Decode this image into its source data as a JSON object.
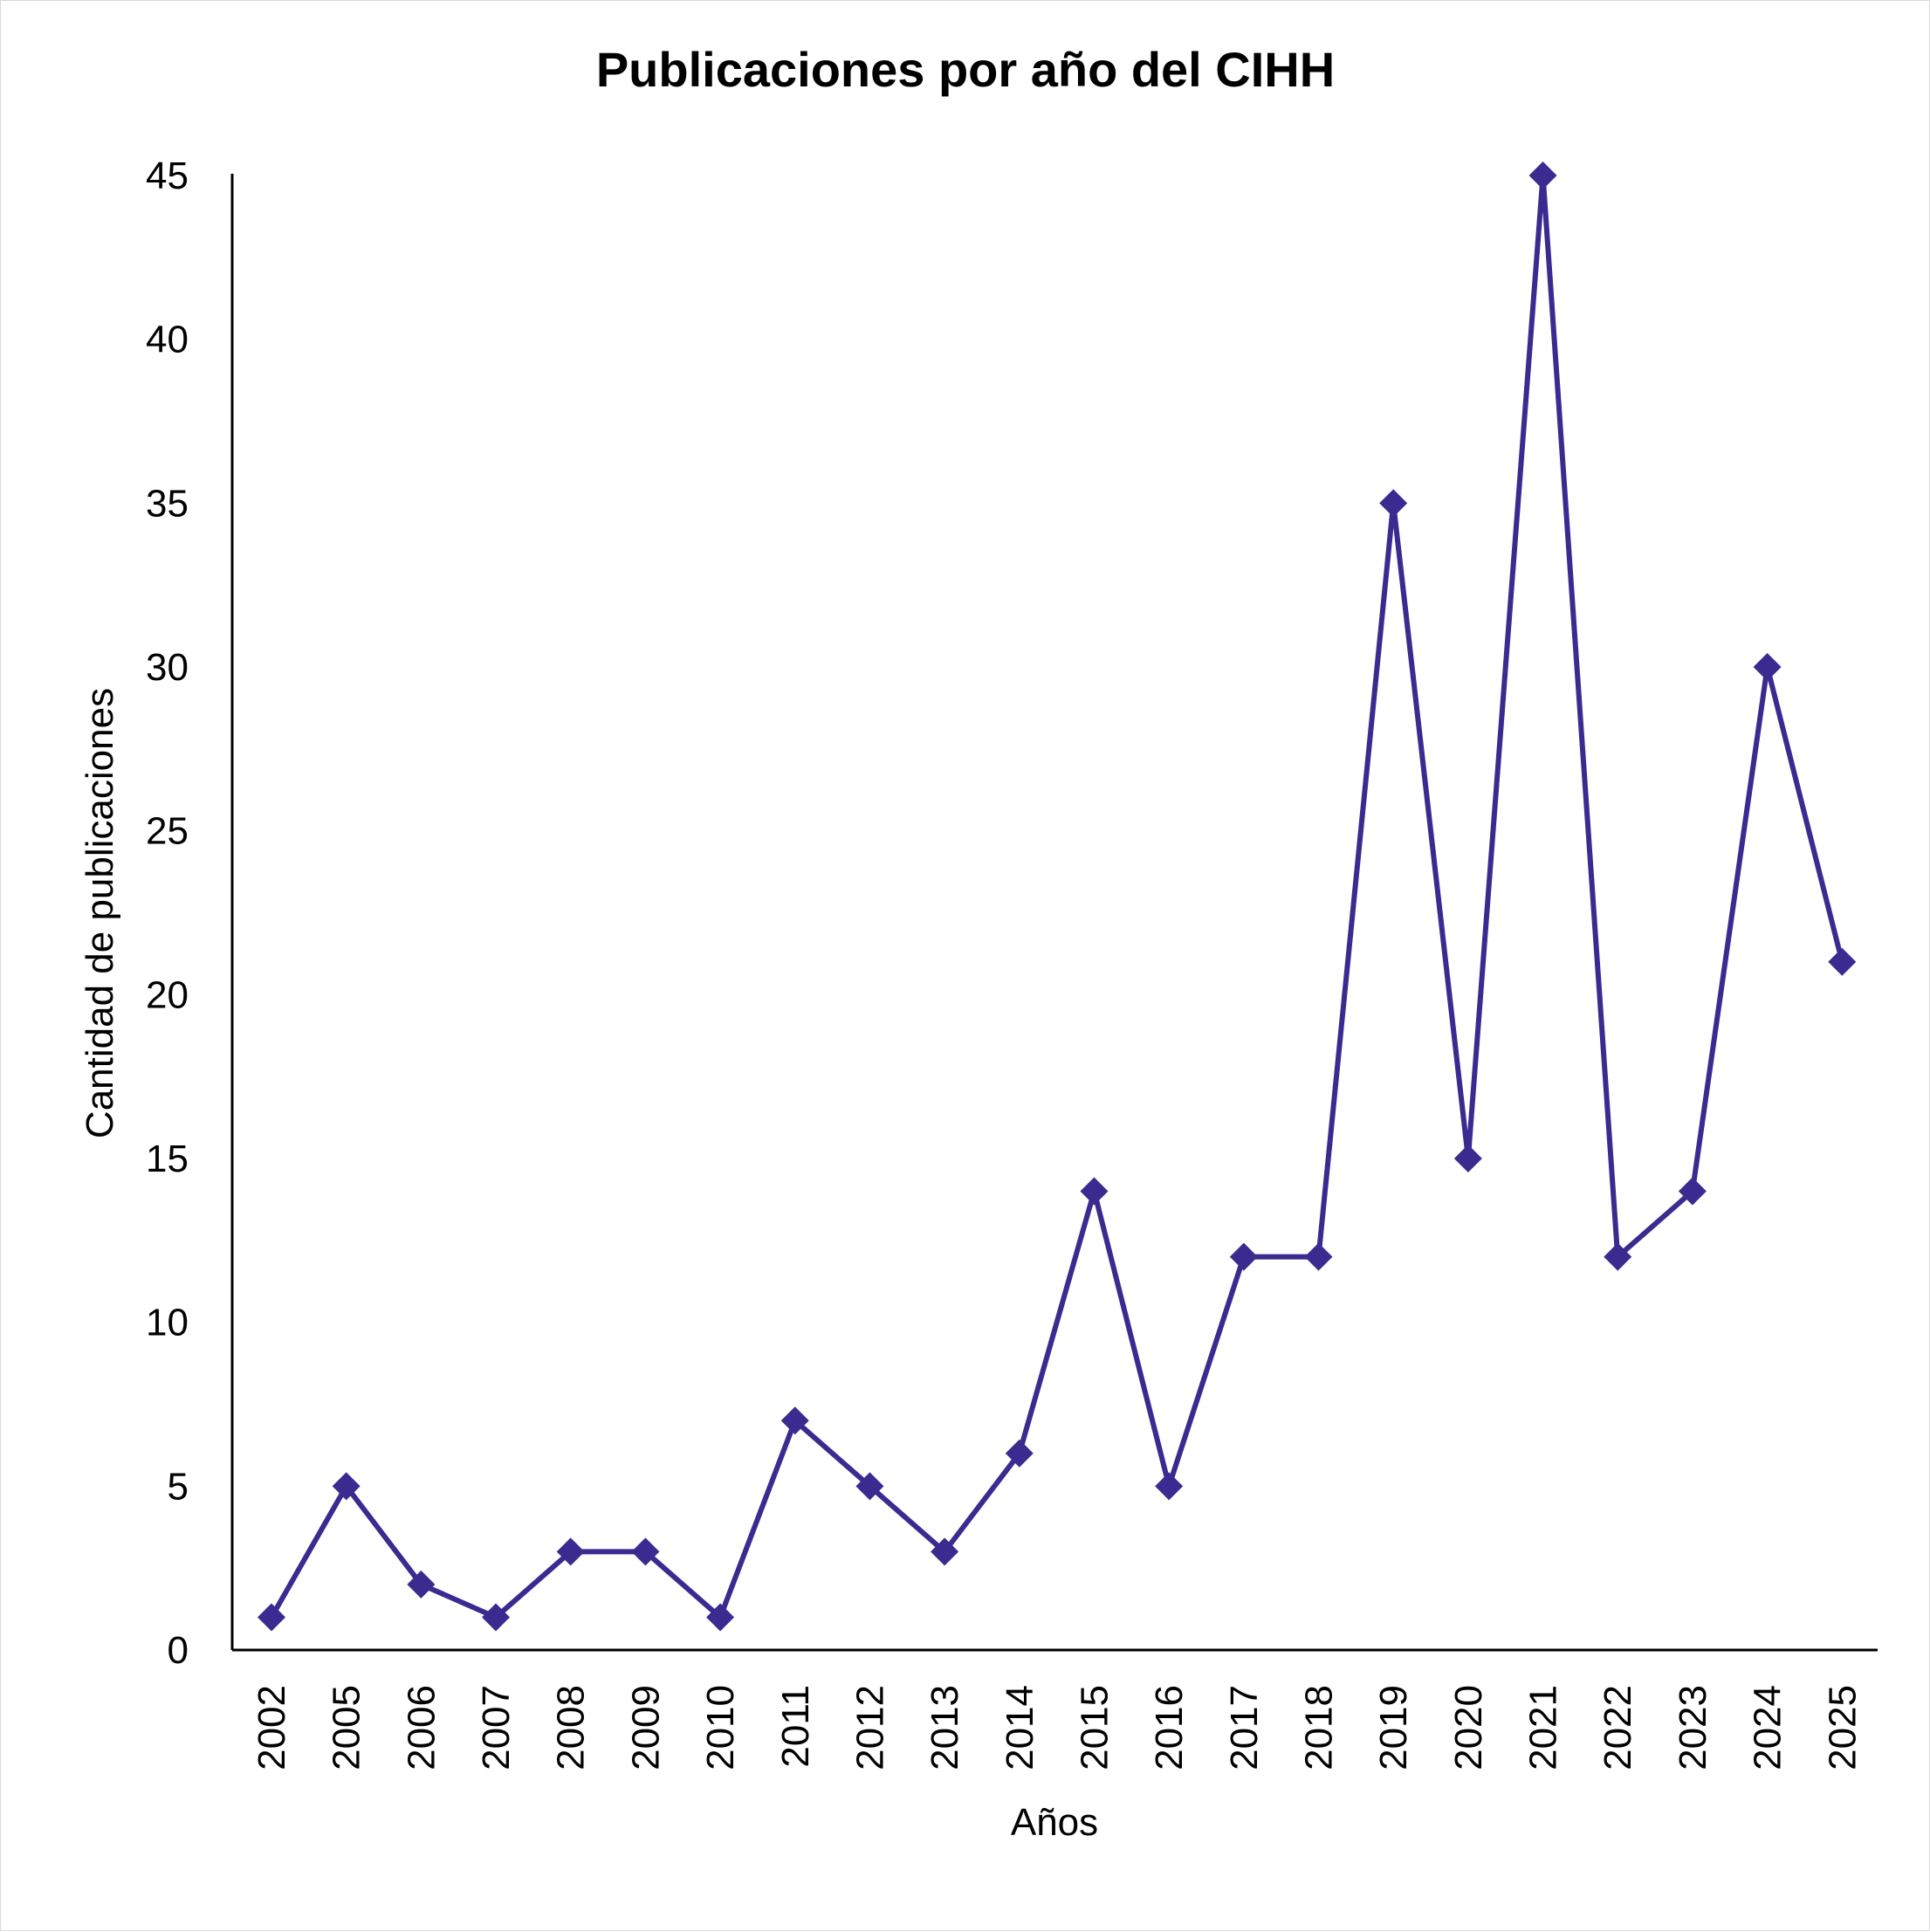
{
  "chart_data": {
    "type": "line",
    "title": "Publicaciones por año del CIHH",
    "xlabel": "Años",
    "ylabel": "Cantidad de publicaciones",
    "categories": [
      "2002",
      "2005",
      "2006",
      "2007",
      "2008",
      "2009",
      "2010",
      "2011",
      "2012",
      "2013",
      "2014",
      "2015",
      "2016",
      "2017",
      "2018",
      "2019",
      "2020",
      "2021",
      "2022",
      "2023",
      "2024",
      "2025"
    ],
    "values": [
      1,
      5,
      2,
      1,
      3,
      3,
      1,
      7,
      5,
      3,
      6,
      14,
      5,
      12,
      12,
      35,
      15,
      45,
      12,
      14,
      30,
      21
    ],
    "ylim": [
      0,
      45
    ],
    "yticks": [
      0,
      5,
      10,
      15,
      20,
      25,
      30,
      35,
      40,
      45
    ],
    "grid": false,
    "legend": "none",
    "marker": "diamond",
    "line_color": "#3b2a8f",
    "axis_color": "#000000"
  }
}
